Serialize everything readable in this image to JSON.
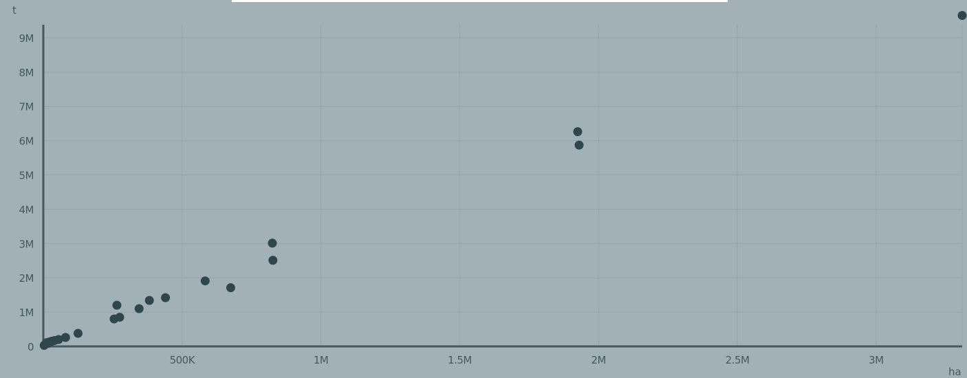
{
  "chart_data": {
    "type": "scatter",
    "title": "",
    "xlabel": "ha",
    "ylabel": "t",
    "xlim": [
      0,
      3310000
    ],
    "ylim": [
      0,
      9700000
    ],
    "x_ticks": [
      500000,
      1000000,
      1500000,
      2000000,
      2500000,
      3000000
    ],
    "x_tick_labels": [
      "500K",
      "1M",
      "1.5M",
      "2M",
      "2.5M",
      "3M"
    ],
    "y_ticks": [
      0,
      1000000,
      2000000,
      3000000,
      4000000,
      5000000,
      6000000,
      7000000,
      8000000,
      9000000
    ],
    "y_tick_labels": [
      "0",
      "1M",
      "2M",
      "3M",
      "4M",
      "5M",
      "6M",
      "7M",
      "8M",
      "9M"
    ],
    "grid": true,
    "colors": {
      "background": "#a2b1b5",
      "point": "#2f464c",
      "axis": "#44595e",
      "grid": "#95a6aa"
    },
    "points": [
      {
        "x": 3000,
        "y": 30000
      },
      {
        "x": 8000,
        "y": 70000
      },
      {
        "x": 12000,
        "y": 110000
      },
      {
        "x": 18000,
        "y": 90000
      },
      {
        "x": 22000,
        "y": 130000
      },
      {
        "x": 30000,
        "y": 150000
      },
      {
        "x": 40000,
        "y": 170000
      },
      {
        "x": 55000,
        "y": 200000
      },
      {
        "x": 80000,
        "y": 260000
      },
      {
        "x": 125000,
        "y": 380000
      },
      {
        "x": 255000,
        "y": 800000
      },
      {
        "x": 265000,
        "y": 1200000
      },
      {
        "x": 275000,
        "y": 850000
      },
      {
        "x": 345000,
        "y": 1100000
      },
      {
        "x": 382000,
        "y": 1340000
      },
      {
        "x": 440000,
        "y": 1420000
      },
      {
        "x": 583000,
        "y": 1910000
      },
      {
        "x": 675000,
        "y": 1710000
      },
      {
        "x": 825000,
        "y": 3010000
      },
      {
        "x": 827000,
        "y": 2510000
      },
      {
        "x": 1925000,
        "y": 6260000
      },
      {
        "x": 1930000,
        "y": 5870000
      },
      {
        "x": 3310000,
        "y": 9650000
      }
    ]
  }
}
